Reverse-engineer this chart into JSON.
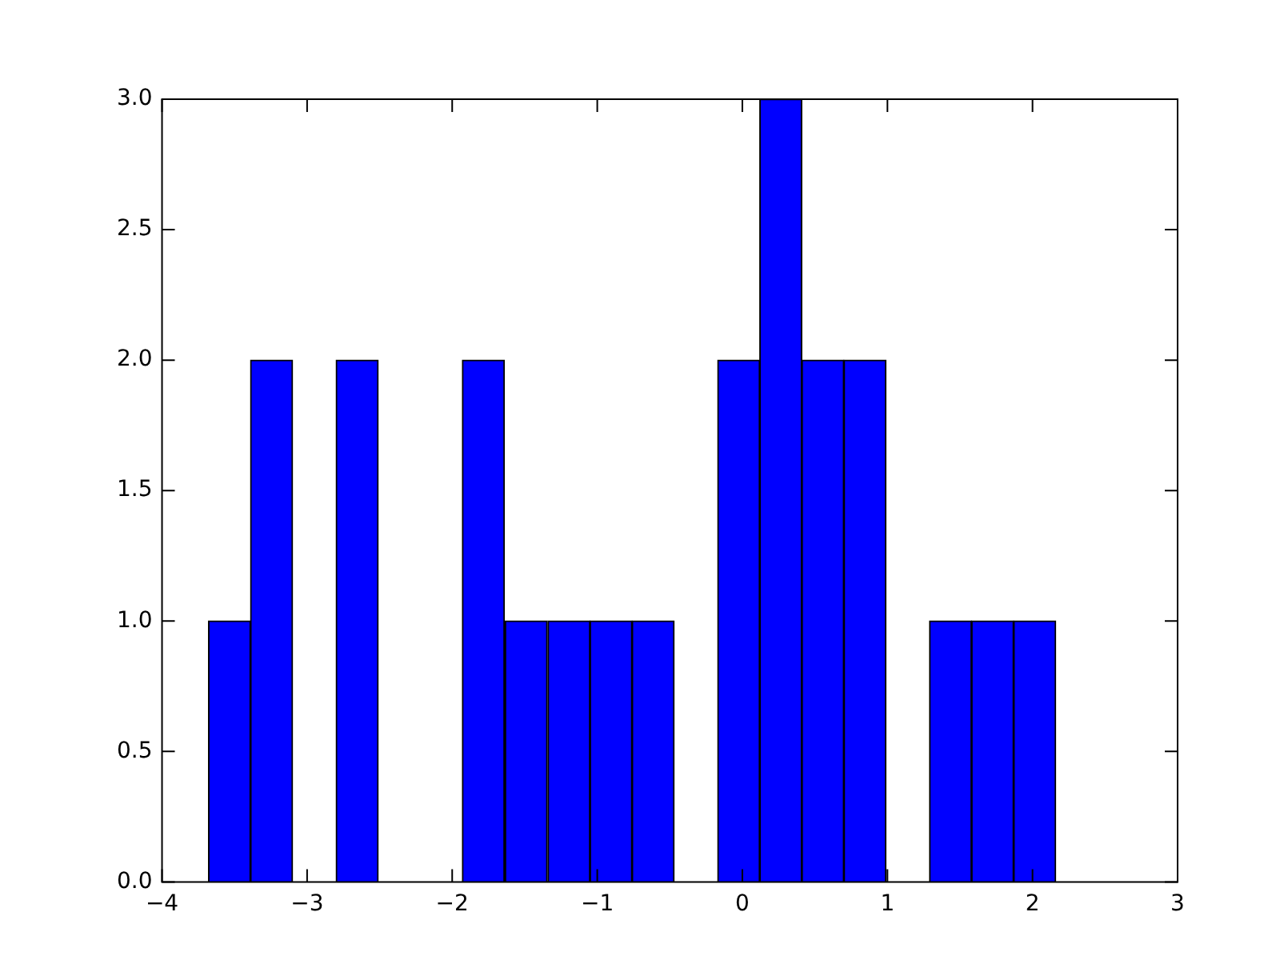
{
  "chart_data": {
    "type": "histogram",
    "bins": [
      -3.68,
      -3.39,
      -3.1,
      -2.8,
      -2.51,
      -2.22,
      -1.93,
      -1.64,
      -1.34,
      -1.05,
      -0.76,
      -0.47,
      -0.17,
      0.12,
      0.41,
      0.7,
      0.99,
      1.29,
      1.58,
      1.87,
      2.16
    ],
    "values": [
      1,
      2,
      0,
      2,
      0,
      0,
      2,
      1,
      1,
      1,
      1,
      0,
      2,
      3,
      2,
      2,
      0,
      1,
      1,
      1
    ],
    "color": "#0000ff",
    "xlim": [
      -4,
      3
    ],
    "xticks": [
      {
        "value": -4,
        "label": "−4"
      },
      {
        "value": -3,
        "label": "−3"
      },
      {
        "value": -2,
        "label": "−2"
      },
      {
        "value": -1,
        "label": "−1"
      },
      0,
      1,
      2,
      3
    ],
    "ylim": [
      0,
      3
    ],
    "yticks": [
      {
        "value": 0,
        "label": "0.0"
      },
      {
        "value": 0.5,
        "label": "0.5"
      },
      {
        "value": 1,
        "label": "1.0"
      },
      {
        "value": 1.5,
        "label": "1.5"
      },
      {
        "value": 2,
        "label": "2.0"
      },
      {
        "value": 2.5,
        "label": "2.5"
      },
      {
        "value": 3,
        "label": "3.0"
      }
    ],
    "grid": false
  }
}
